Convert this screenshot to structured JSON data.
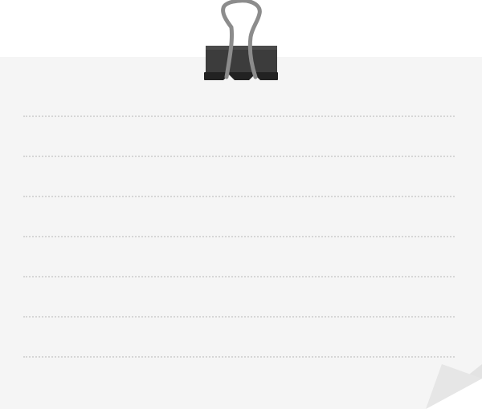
{
  "note": {
    "paper_color": "#f5f5f5",
    "rule_color": "#d6d6d6",
    "ruled_line_count": 7
  },
  "icons": {
    "clip": "binder-clip-icon",
    "corner": "page-curl-icon"
  },
  "colors": {
    "background": "#ffffff",
    "clip_body": "#3a3a3a",
    "clip_wire": "#8a8a8a",
    "curl_fold": "#e6e6e6"
  }
}
